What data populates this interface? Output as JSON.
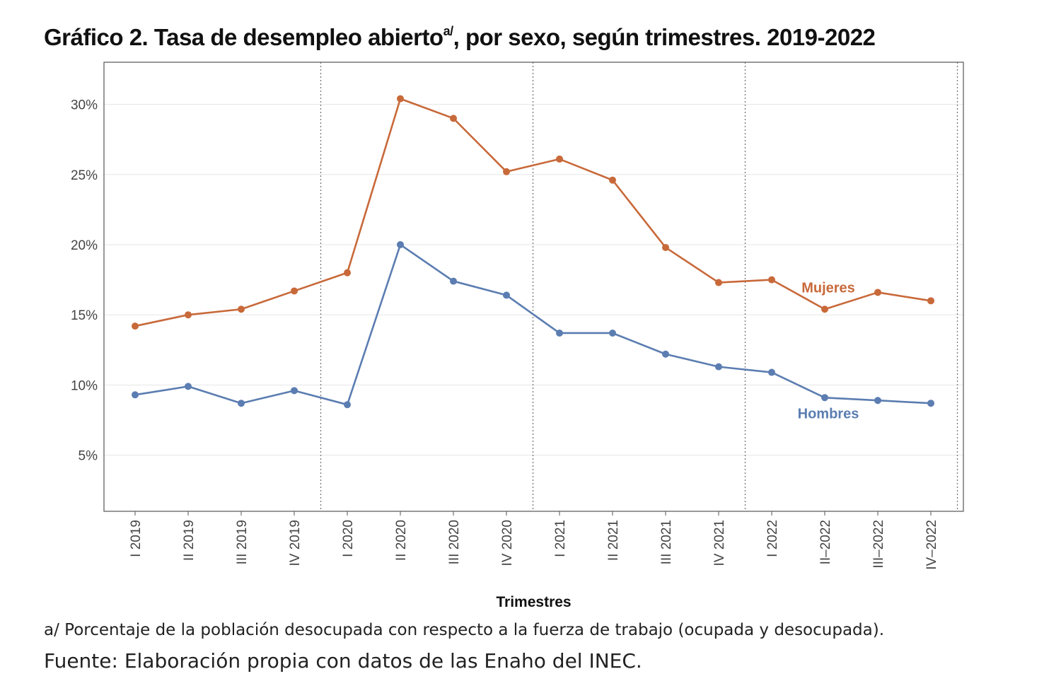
{
  "title": {
    "text": "Gráfico 2. Tasa de desempleo abierto",
    "sup": "a/",
    "tail": ", por sexo, según trimestres. 2019-2022"
  },
  "notes": {
    "note1": "a/ Porcentaje de la población desocupada con respecto a la fuerza de trabajo (ocupada y desocupada).",
    "note2": "Fuente: Elaboración propia con datos de las Enaho del INEC."
  },
  "chart_data": {
    "type": "line",
    "title": "Gráfico 2. Tasa de desempleo abierto a/, por sexo, según trimestres. 2019-2022",
    "xlabel": "Trimestres",
    "ylabel": "",
    "ylim": [
      1,
      33
    ],
    "yticks": [
      5,
      10,
      15,
      20,
      25,
      30
    ],
    "ytick_labels": [
      "5%",
      "10%",
      "15%",
      "20%",
      "25%",
      "30%"
    ],
    "categories": [
      "I 2019",
      "II 2019",
      "III 2019",
      "IV 2019",
      "I 2020",
      "II 2020",
      "III 2020",
      "IV 2020",
      "I 2021",
      "II 2021",
      "III 2021",
      "IV 2021",
      "I 2022",
      "II–2022",
      "III–2022",
      "IV–2022"
    ],
    "year_separators_after": [
      "IV 2019",
      "IV 2020",
      "IV 2021",
      "IV–2022"
    ],
    "grid": "horizontal",
    "series": [
      {
        "name": "Mujeres",
        "color": "#C8693A",
        "values": [
          14.2,
          15.0,
          15.4,
          16.7,
          18.0,
          30.4,
          29.0,
          25.2,
          26.1,
          24.6,
          19.8,
          17.3,
          17.5,
          15.4,
          16.6,
          16.0
        ]
      },
      {
        "name": "Hombres",
        "color": "#5B7DB1",
        "values": [
          9.3,
          9.9,
          8.7,
          9.6,
          8.6,
          20.0,
          17.4,
          16.4,
          13.7,
          13.7,
          12.2,
          11.3,
          10.9,
          9.1,
          8.9,
          8.7
        ]
      }
    ]
  }
}
